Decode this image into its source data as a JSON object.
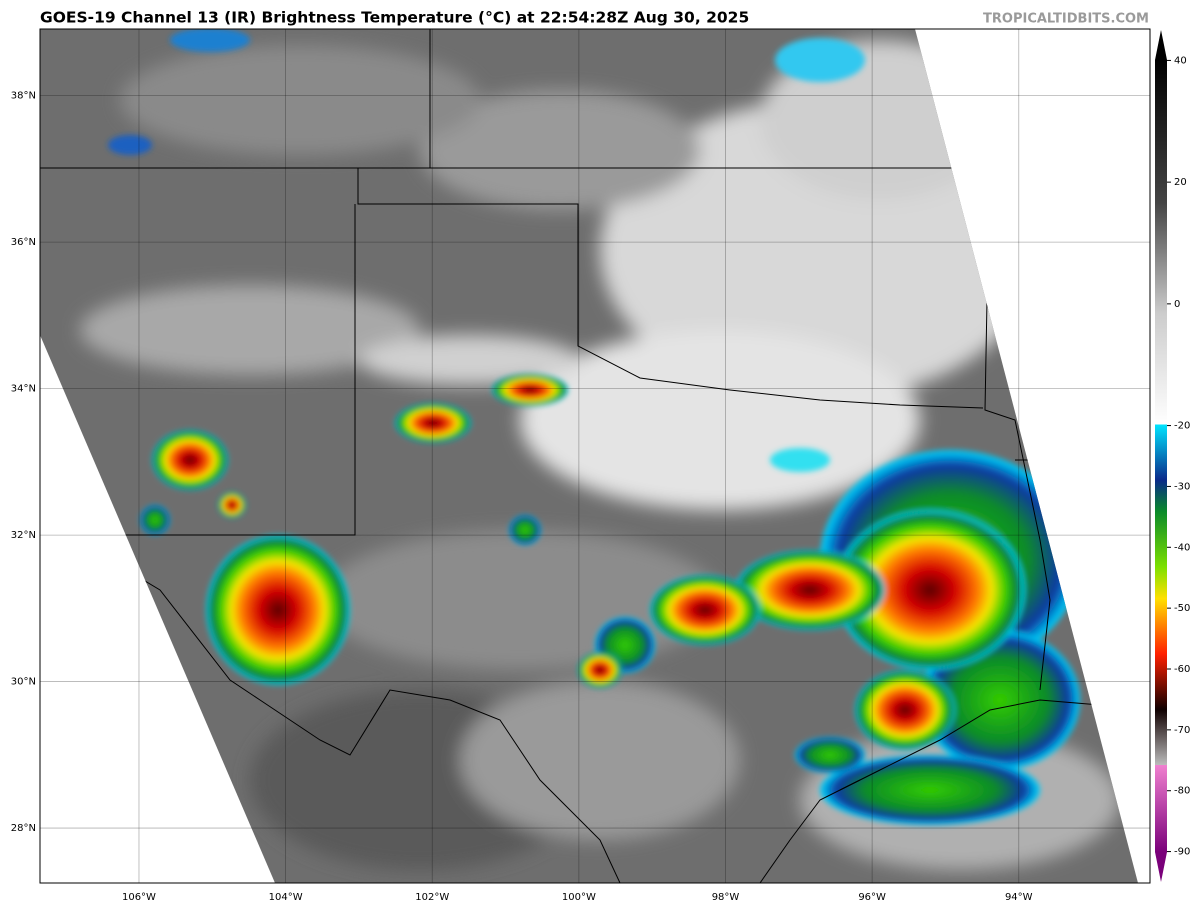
{
  "header": {
    "title": "GOES-19 Channel 13 (IR) Brightness Temperature (°C) at 22:54:28Z Aug 30, 2025",
    "source": "TROPICALTIDBITS.COM"
  },
  "map": {
    "latlim": [
      27.25,
      38.91
    ],
    "lonlim": [
      -107.35,
      -92.21
    ],
    "grid": true,
    "lat_ticks": [
      {
        "value": 28,
        "label": "28°N"
      },
      {
        "value": 30,
        "label": "30°N"
      },
      {
        "value": 32,
        "label": "32°N"
      },
      {
        "value": 34,
        "label": "34°N"
      },
      {
        "value": 36,
        "label": "36°N"
      },
      {
        "value": 38,
        "label": "38°N"
      }
    ],
    "lon_ticks": [
      {
        "value": -106,
        "label": "106°W"
      },
      {
        "value": -104,
        "label": "104°W"
      },
      {
        "value": -102,
        "label": "102°W"
      },
      {
        "value": -100,
        "label": "100°W"
      },
      {
        "value": -98,
        "label": "98°W"
      },
      {
        "value": -96,
        "label": "96°W"
      },
      {
        "value": -94,
        "label": "94°W"
      }
    ]
  },
  "colorbar": {
    "lim": [
      -95,
      45
    ],
    "ticks": [
      40,
      20,
      0,
      -20,
      -30,
      -40,
      -50,
      -60,
      -70,
      -80,
      -90
    ]
  }
}
